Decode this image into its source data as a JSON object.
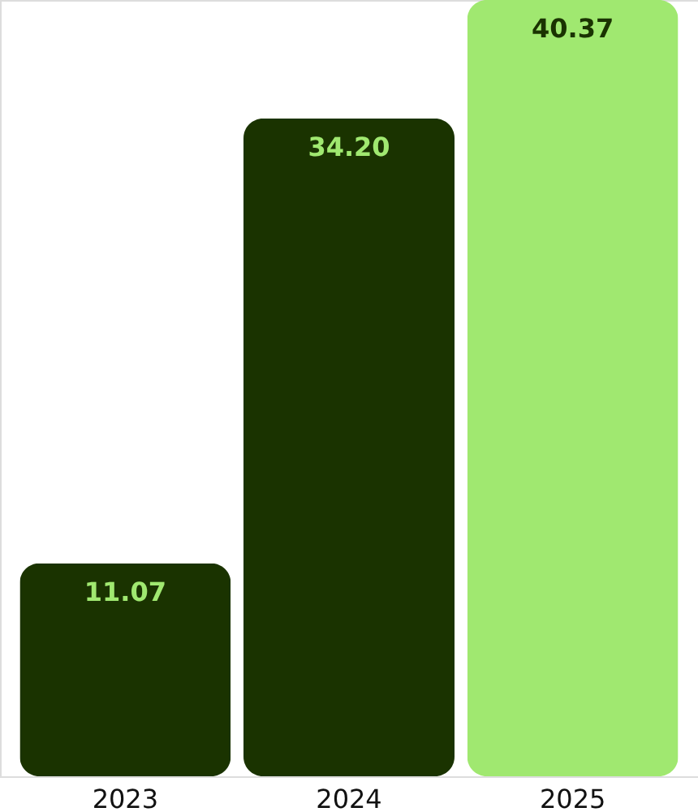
{
  "chart_data": {
    "type": "bar",
    "categories": [
      "2023",
      "2024",
      "2025"
    ],
    "values": [
      11.07,
      34.2,
      40.37
    ],
    "colors": [
      "#1a3300",
      "#1a3300",
      "#a0e870"
    ],
    "value_labels": [
      "11.07",
      "34.20",
      "40.37"
    ],
    "grid": false
  }
}
